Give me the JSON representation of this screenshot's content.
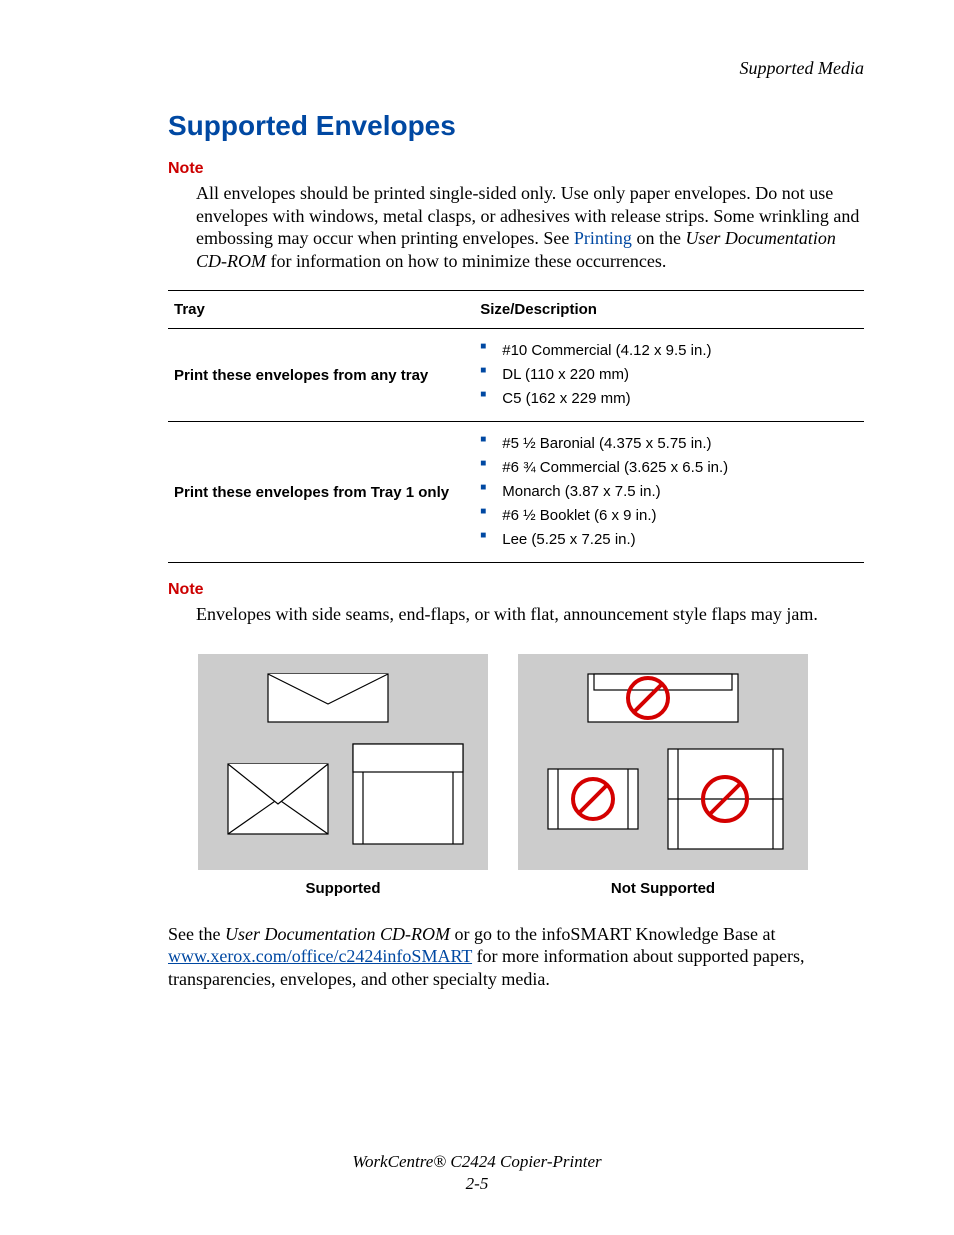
{
  "header": {
    "section": "Supported Media"
  },
  "title": "Supported Envelopes",
  "note1": {
    "label": "Note",
    "body_pre": "All envelopes should be printed single-sided only. Use only paper envelopes. Do not use envelopes with windows, metal clasps, or adhesives with release strips. Some wrinkling and embossing may occur when printing envelopes. See ",
    "link_text": "Printing",
    "body_mid": " on the ",
    "em_text": "User Documentation CD-ROM",
    "body_post": " for information on how to minimize these occurrences."
  },
  "table": {
    "col1": "Tray",
    "col2": "Size/Description",
    "rows": [
      {
        "tray": "Print these envelopes from any tray",
        "items": [
          "#10 Commercial (4.12 x 9.5 in.)",
          "DL (110 x 220 mm)",
          "C5 (162 x 229 mm)"
        ]
      },
      {
        "tray": "Print these envelopes from Tray 1 only",
        "items": [
          "#5 ½ Baronial (4.375 x 5.75 in.)",
          "#6 ¾ Commercial (3.625 x 6.5 in.)",
          "Monarch (3.87 x 7.5 in.)",
          "#6 ½ Booklet (6 x 9 in.)",
          "Lee (5.25 x 7.25 in.)"
        ]
      }
    ]
  },
  "note2": {
    "label": "Note",
    "body": "Envelopes with side seams, end-flaps, or with flat, announcement style flaps may jam."
  },
  "captions": {
    "left": "Supported",
    "right": "Not Supported"
  },
  "closing": {
    "pre": "See the ",
    "em": "User Documentation CD-ROM",
    "mid": " or go to the infoSMART Knowledge Base at ",
    "url": "www.xerox.com/office/c2424infoSMART",
    "post": " for more information about supported papers, transparencies, envelopes, and other specialty media."
  },
  "footer": {
    "line1": "WorkCentre® C2424 Copier-Printer",
    "line2": "2-5"
  },
  "colors": {
    "title": "#0048a2",
    "note_label": "#cc0000",
    "link": "#0048a2",
    "bullet": "#0048a2",
    "url": "#0048a2",
    "no_sign": "#d40000",
    "figure_bg": "#cccccc"
  }
}
